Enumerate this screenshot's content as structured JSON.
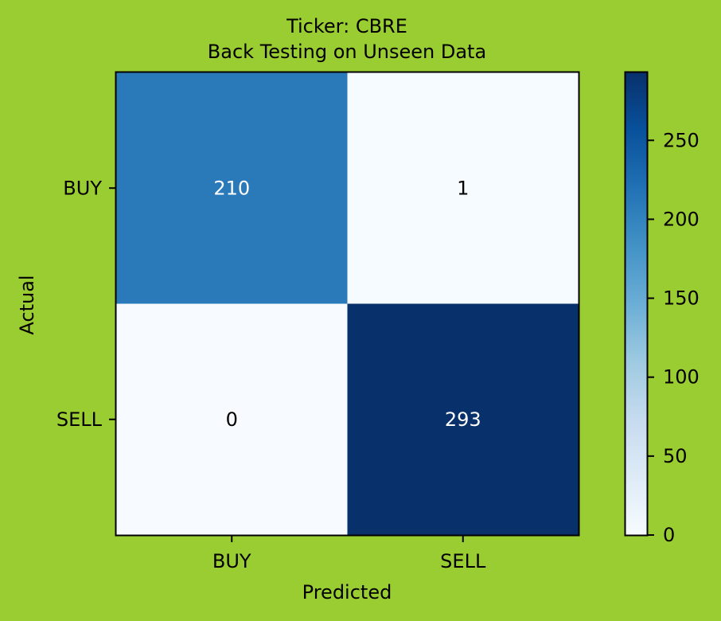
{
  "page": {
    "background": "#9acd32"
  },
  "chart_data": {
    "type": "heatmap",
    "title": "Ticker: CBRE",
    "subtitle": "Back Testing on Unseen Data",
    "xlabel": "Predicted",
    "ylabel": "Actual",
    "x_categories": [
      "BUY",
      "SELL"
    ],
    "y_categories": [
      "BUY",
      "SELL"
    ],
    "matrix": [
      [
        210,
        1
      ],
      [
        0,
        293
      ]
    ],
    "colormap": "Blues",
    "colorbar": {
      "range": [
        0,
        293
      ],
      "ticks": [
        0,
        50,
        100,
        150,
        200,
        250
      ],
      "tick_labels": [
        "0",
        "50",
        "100",
        "150",
        "200",
        "250"
      ]
    },
    "colors": {
      "cell_low": "#f7fbff",
      "cell_high": "#08306b",
      "cell_210": "#2879b9",
      "text_light": "#ffffff",
      "text_dark": "#000000"
    },
    "grid": false
  }
}
